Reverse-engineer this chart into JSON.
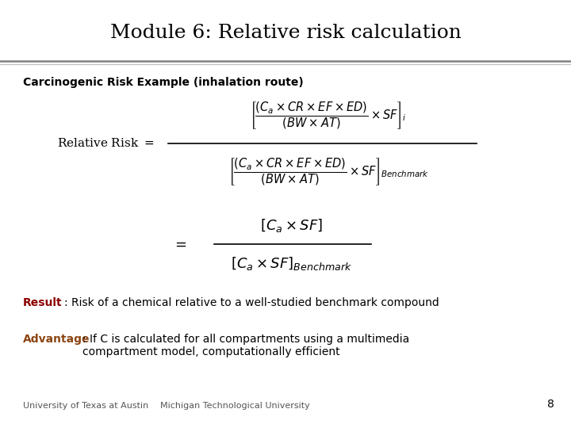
{
  "title": "Module 6: Relative risk calculation",
  "subtitle": "Carcinogenic Risk Example (inhalation route)",
  "result_bold": "Result",
  "result_text": ": Risk of a chemical relative to a well-studied benchmark compound",
  "advantage_bold": "Advantage",
  "advantage_text": ": If C is calculated for all compartments using a multimedia\ncompartment model, computationally efficient",
  "footer_left": "University of Texas at Austin",
  "footer_mid": "Michigan Technological University",
  "page_number": "8",
  "bg_color": "#ffffff",
  "title_color": "#000000",
  "result_color": "#8B0000",
  "advantage_color": "#8B4513",
  "header_line_color1": "#808080",
  "header_line_color2": "#c0c0c0"
}
